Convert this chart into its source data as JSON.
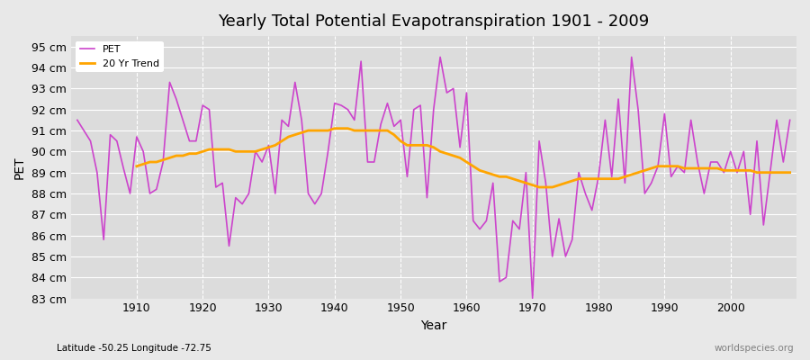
{
  "title": "Yearly Total Potential Evapotranspiration 1901 - 2009",
  "xlabel": "Year",
  "ylabel": "PET",
  "subtitle": "Latitude -50.25 Longitude -72.75",
  "watermark": "worldspecies.org",
  "pet_color": "#CC44CC",
  "trend_color": "#FFA500",
  "background_color": "#E8E8E8",
  "plot_bg_color": "#DCDCDC",
  "ylim": [
    83,
    95.5
  ],
  "yticks": [
    83,
    84,
    85,
    86,
    87,
    88,
    89,
    90,
    91,
    92,
    93,
    94,
    95
  ],
  "years": [
    1901,
    1902,
    1903,
    1904,
    1905,
    1906,
    1907,
    1908,
    1909,
    1910,
    1911,
    1912,
    1913,
    1914,
    1915,
    1916,
    1917,
    1918,
    1919,
    1920,
    1921,
    1922,
    1923,
    1924,
    1925,
    1926,
    1927,
    1928,
    1929,
    1930,
    1931,
    1932,
    1933,
    1934,
    1935,
    1936,
    1937,
    1938,
    1939,
    1940,
    1941,
    1942,
    1943,
    1944,
    1945,
    1946,
    1947,
    1948,
    1949,
    1950,
    1951,
    1952,
    1953,
    1954,
    1955,
    1956,
    1957,
    1958,
    1959,
    1960,
    1961,
    1962,
    1963,
    1964,
    1965,
    1966,
    1967,
    1968,
    1969,
    1970,
    1971,
    1972,
    1973,
    1974,
    1975,
    1976,
    1977,
    1978,
    1979,
    1980,
    1981,
    1982,
    1983,
    1984,
    1985,
    1986,
    1987,
    1988,
    1989,
    1990,
    1991,
    1992,
    1993,
    1994,
    1995,
    1996,
    1997,
    1998,
    1999,
    2000,
    2001,
    2002,
    2003,
    2004,
    2005,
    2006,
    2007,
    2008,
    2009
  ],
  "pet_values": [
    91.5,
    91.0,
    90.5,
    89.0,
    85.8,
    90.8,
    90.5,
    89.2,
    88.0,
    90.7,
    90.0,
    88.0,
    88.2,
    89.5,
    93.3,
    92.5,
    91.5,
    90.5,
    90.5,
    92.2,
    92.0,
    88.3,
    88.5,
    85.5,
    87.8,
    87.5,
    88.0,
    90.0,
    89.5,
    90.3,
    88.0,
    91.5,
    91.2,
    93.3,
    91.5,
    88.0,
    87.5,
    88.0,
    90.0,
    92.3,
    92.2,
    92.0,
    91.5,
    94.3,
    89.5,
    89.5,
    91.3,
    92.3,
    91.2,
    91.5,
    88.8,
    92.0,
    92.2,
    87.8,
    92.0,
    94.5,
    92.8,
    93.0,
    90.2,
    92.8,
    86.7,
    86.3,
    86.7,
    88.5,
    83.8,
    84.0,
    86.7,
    86.3,
    89.0,
    83.0,
    90.5,
    88.5,
    85.0,
    86.8,
    85.0,
    85.8,
    89.0,
    88.0,
    87.2,
    88.8,
    91.5,
    88.8,
    92.5,
    88.5,
    94.5,
    92.0,
    88.0,
    88.5,
    89.3,
    91.8,
    88.8,
    89.3,
    89.0,
    91.5,
    89.5,
    88.0,
    89.5,
    89.5,
    89.0,
    90.0,
    89.0,
    90.0,
    87.0,
    90.5,
    86.5,
    89.0,
    91.5,
    89.5,
    91.5
  ],
  "trend_years": [
    1910,
    1911,
    1912,
    1913,
    1914,
    1915,
    1916,
    1917,
    1918,
    1919,
    1920,
    1921,
    1922,
    1923,
    1924,
    1925,
    1926,
    1927,
    1928,
    1929,
    1930,
    1931,
    1932,
    1933,
    1934,
    1935,
    1936,
    1937,
    1938,
    1939,
    1940,
    1941,
    1942,
    1943,
    1944,
    1945,
    1946,
    1947,
    1948,
    1949,
    1950,
    1951,
    1952,
    1953,
    1954,
    1955,
    1956,
    1957,
    1958,
    1959,
    1960,
    1961,
    1962,
    1963,
    1964,
    1965,
    1966,
    1967,
    1968,
    1969,
    1970,
    1971,
    1972,
    1973,
    1974,
    1975,
    1976,
    1977,
    1978,
    1979,
    1980,
    1981,
    1982,
    1983,
    1984,
    1985,
    1986,
    1987,
    1988,
    1989,
    1990,
    1991,
    1992,
    1993,
    1994,
    1995,
    1996,
    1997,
    1998,
    1999,
    2000,
    2001,
    2002,
    2003,
    2004,
    2005,
    2006,
    2007,
    2008,
    2009
  ],
  "trend_values": [
    89.3,
    89.4,
    89.5,
    89.5,
    89.6,
    89.7,
    89.8,
    89.8,
    89.9,
    89.9,
    90.0,
    90.1,
    90.1,
    90.1,
    90.1,
    90.0,
    90.0,
    90.0,
    90.0,
    90.1,
    90.2,
    90.3,
    90.5,
    90.7,
    90.8,
    90.9,
    91.0,
    91.0,
    91.0,
    91.0,
    91.1,
    91.1,
    91.1,
    91.0,
    91.0,
    91.0,
    91.0,
    91.0,
    91.0,
    90.8,
    90.5,
    90.3,
    90.3,
    90.3,
    90.3,
    90.2,
    90.0,
    89.9,
    89.8,
    89.7,
    89.5,
    89.3,
    89.1,
    89.0,
    88.9,
    88.8,
    88.8,
    88.7,
    88.6,
    88.5,
    88.4,
    88.3,
    88.3,
    88.3,
    88.4,
    88.5,
    88.6,
    88.7,
    88.7,
    88.7,
    88.7,
    88.7,
    88.7,
    88.7,
    88.8,
    88.9,
    89.0,
    89.1,
    89.2,
    89.3,
    89.3,
    89.3,
    89.3,
    89.2,
    89.2,
    89.2,
    89.2,
    89.2,
    89.2,
    89.1,
    89.1,
    89.1,
    89.1,
    89.1,
    89.0,
    89.0,
    89.0,
    89.0,
    89.0,
    89.0
  ]
}
